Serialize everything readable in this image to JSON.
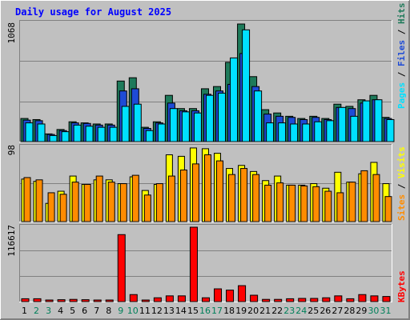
{
  "chart_data": [
    {
      "type": "bar",
      "panel": "hits",
      "title": "Daily usage for August 2025",
      "ymax_label": "1068",
      "ylim": [
        0,
        1068
      ],
      "legend": [
        "Pages",
        "Files",
        "Hits"
      ],
      "legend_placement": "right",
      "grid": true,
      "categories": [
        "1",
        "2",
        "3",
        "4",
        "5",
        "6",
        "7",
        "8",
        "9",
        "10",
        "11",
        "12",
        "13",
        "14",
        "15",
        "16",
        "17",
        "18",
        "19",
        "20",
        "21",
        "22",
        "23",
        "24",
        "25",
        "26",
        "27",
        "28",
        "29",
        "30",
        "31"
      ],
      "series": [
        {
          "name": "Hits",
          "color": "#1e7a5a",
          "values": [
            210,
            200,
            70,
            110,
            180,
            170,
            160,
            160,
            550,
            580,
            130,
            180,
            420,
            300,
            300,
            480,
            500,
            720,
            1068,
            590,
            290,
            260,
            230,
            210,
            230,
            210,
            340,
            320,
            380,
            420,
            220
          ]
        },
        {
          "name": "Files",
          "color": "#1e4bd6",
          "values": [
            195,
            190,
            65,
            100,
            170,
            165,
            150,
            150,
            460,
            480,
            120,
            170,
            350,
            280,
            280,
            430,
            460,
            520,
            800,
            500,
            250,
            230,
            220,
            200,
            220,
            200,
            310,
            300,
            350,
            380,
            210
          ]
        },
        {
          "name": "Pages",
          "color": "#00e0ff",
          "values": [
            170,
            160,
            55,
            90,
            150,
            140,
            130,
            130,
            320,
            340,
            100,
            160,
            300,
            270,
            260,
            420,
            440,
            760,
            1015,
            460,
            170,
            170,
            160,
            160,
            180,
            190,
            310,
            230,
            370,
            380,
            200
          ]
        }
      ]
    },
    {
      "type": "bar",
      "panel": "visits",
      "ymax_label": "98",
      "ylim": [
        0,
        98
      ],
      "legend": [
        "Sites",
        "Visits"
      ],
      "legend_placement": "right",
      "grid": true,
      "categories": [
        "1",
        "2",
        "3",
        "4",
        "5",
        "6",
        "7",
        "8",
        "9",
        "10",
        "11",
        "12",
        "13",
        "14",
        "15",
        "16",
        "17",
        "18",
        "19",
        "20",
        "21",
        "22",
        "23",
        "24",
        "25",
        "26",
        "27",
        "28",
        "29",
        "30",
        "31"
      ],
      "series": [
        {
          "name": "Visits",
          "color": "#ffff00",
          "values": [
            56,
            53,
            24,
            40,
            60,
            49,
            55,
            55,
            50,
            59,
            41,
            49,
            88,
            86,
            97,
            96,
            90,
            70,
            74,
            66,
            54,
            60,
            48,
            48,
            50,
            44,
            65,
            52,
            63,
            78,
            50
          ]
        },
        {
          "name": "Sites",
          "color": "#ff8c00",
          "values": [
            58,
            55,
            38,
            36,
            52,
            49,
            60,
            52,
            50,
            61,
            35,
            50,
            60,
            68,
            76,
            88,
            80,
            62,
            70,
            62,
            48,
            51,
            48,
            47,
            46,
            40,
            38,
            52,
            67,
            62,
            33
          ]
        }
      ]
    },
    {
      "type": "bar",
      "panel": "kbytes",
      "ymax_label": "116617",
      "ylim": [
        0,
        116617
      ],
      "legend": [
        "KBytes"
      ],
      "legend_placement": "right",
      "grid": true,
      "categories": [
        "1",
        "2",
        "3",
        "4",
        "5",
        "6",
        "7",
        "8",
        "9",
        "10",
        "11",
        "12",
        "13",
        "14",
        "15",
        "16",
        "17",
        "18",
        "19",
        "20",
        "21",
        "22",
        "23",
        "24",
        "25",
        "26",
        "27",
        "28",
        "29",
        "30",
        "31"
      ],
      "series": [
        {
          "name": "KBytes",
          "color": "#ff0000",
          "values": [
            4500,
            4500,
            2500,
            3000,
            3500,
            3000,
            2500,
            2500,
            105000,
            11000,
            2500,
            6000,
            9000,
            9000,
            116617,
            6000,
            20000,
            18000,
            25000,
            10000,
            3500,
            3500,
            4500,
            5000,
            5000,
            6000,
            9000,
            4500,
            11000,
            9000,
            8000
          ]
        }
      ]
    }
  ],
  "x_axis": {
    "labels": [
      "1",
      "2",
      "3",
      "4",
      "5",
      "6",
      "7",
      "8",
      "9",
      "10",
      "11",
      "12",
      "13",
      "14",
      "15",
      "16",
      "17",
      "18",
      "19",
      "20",
      "21",
      "22",
      "23",
      "24",
      "25",
      "26",
      "27",
      "28",
      "29",
      "30",
      "31"
    ],
    "weekend_days": [
      "2",
      "3",
      "9",
      "10",
      "16",
      "17",
      "23",
      "24",
      "30",
      "31"
    ],
    "weekday_color": "#000000",
    "weekend_color": "#00805a"
  },
  "colors": {
    "background": "#c0c0c0",
    "title": "#0000ff",
    "plot_bg": "#c0c0c0",
    "grid": "#808080"
  }
}
